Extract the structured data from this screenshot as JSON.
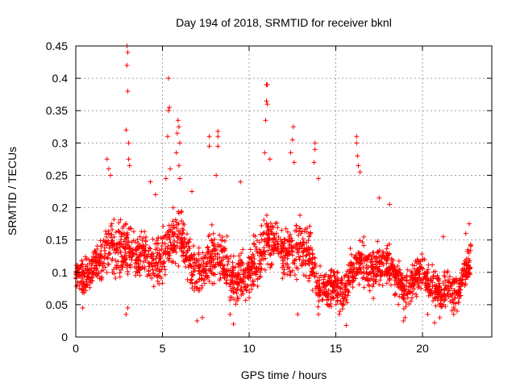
{
  "chart_data": {
    "type": "scatter",
    "title": "Day 194 of 2018, SRMTID for receiver bknl",
    "xlabel": "GPS time / hours",
    "ylabel": "SRMTID / TECUs",
    "xlim": [
      0,
      24
    ],
    "ylim": [
      0,
      0.45
    ],
    "grid": true,
    "marker": "plus",
    "marker_color": "#ff0000",
    "xticks": [
      {
        "value": 0,
        "label": "0"
      },
      {
        "value": 5,
        "label": "5"
      },
      {
        "value": 10,
        "label": "10"
      },
      {
        "value": 15,
        "label": "15"
      },
      {
        "value": 20,
        "label": "20"
      }
    ],
    "yticks": [
      {
        "value": 0,
        "label": "0"
      },
      {
        "value": 0.05,
        "label": "0.05"
      },
      {
        "value": 0.1,
        "label": "0.1"
      },
      {
        "value": 0.15,
        "label": "0.15"
      },
      {
        "value": 0.2,
        "label": "0.2"
      },
      {
        "value": 0.25,
        "label": "0.25"
      },
      {
        "value": 0.3,
        "label": "0.3"
      },
      {
        "value": 0.35,
        "label": "0.35"
      },
      {
        "value": 0.4,
        "label": "0.4"
      },
      {
        "value": 0.45,
        "label": "0.45"
      }
    ],
    "x_extent": [
      0,
      22.8
    ],
    "envelope": {
      "hours": [
        0,
        0.5,
        1,
        1.5,
        2,
        2.5,
        3,
        3.5,
        4,
        4.5,
        5,
        5.5,
        6,
        6.5,
        7,
        7.5,
        8,
        8.5,
        9,
        9.5,
        10,
        10.5,
        11,
        11.5,
        12,
        12.5,
        13,
        13.5,
        14,
        14.5,
        15,
        15.5,
        16,
        16.5,
        17,
        17.5,
        18,
        18.5,
        19,
        19.5,
        20,
        20.5,
        21,
        21.5,
        22,
        22.5,
        22.8
      ],
      "center": [
        0.1,
        0.09,
        0.11,
        0.12,
        0.14,
        0.13,
        0.14,
        0.12,
        0.13,
        0.11,
        0.13,
        0.15,
        0.16,
        0.12,
        0.1,
        0.11,
        0.13,
        0.12,
        0.09,
        0.09,
        0.1,
        0.12,
        0.15,
        0.14,
        0.13,
        0.13,
        0.14,
        0.13,
        0.08,
        0.07,
        0.08,
        0.07,
        0.11,
        0.12,
        0.1,
        0.11,
        0.12,
        0.09,
        0.07,
        0.09,
        0.1,
        0.08,
        0.07,
        0.08,
        0.07,
        0.1,
        0.12
      ],
      "spread": [
        0.03,
        0.04,
        0.04,
        0.05,
        0.06,
        0.06,
        0.06,
        0.05,
        0.05,
        0.05,
        0.06,
        0.06,
        0.06,
        0.05,
        0.05,
        0.05,
        0.06,
        0.06,
        0.05,
        0.05,
        0.05,
        0.06,
        0.06,
        0.06,
        0.06,
        0.06,
        0.06,
        0.06,
        0.04,
        0.04,
        0.04,
        0.04,
        0.05,
        0.05,
        0.05,
        0.05,
        0.05,
        0.04,
        0.04,
        0.04,
        0.04,
        0.04,
        0.04,
        0.04,
        0.04,
        0.04,
        0.04
      ]
    },
    "points_per_hour": 100,
    "peaks": [
      {
        "x": 1.8,
        "y": 0.275
      },
      {
        "x": 1.9,
        "y": 0.26
      },
      {
        "x": 2.0,
        "y": 0.25
      },
      {
        "x": 2.95,
        "y": 0.45
      },
      {
        "x": 3.0,
        "y": 0.44
      },
      {
        "x": 2.95,
        "y": 0.42
      },
      {
        "x": 3.0,
        "y": 0.38
      },
      {
        "x": 2.9,
        "y": 0.32
      },
      {
        "x": 3.05,
        "y": 0.3
      },
      {
        "x": 3.05,
        "y": 0.275
      },
      {
        "x": 3.1,
        "y": 0.265
      },
      {
        "x": 4.3,
        "y": 0.24
      },
      {
        "x": 4.6,
        "y": 0.22
      },
      {
        "x": 5.35,
        "y": 0.4
      },
      {
        "x": 5.4,
        "y": 0.355
      },
      {
        "x": 5.35,
        "y": 0.35
      },
      {
        "x": 5.3,
        "y": 0.31
      },
      {
        "x": 5.45,
        "y": 0.26
      },
      {
        "x": 5.2,
        "y": 0.245
      },
      {
        "x": 5.9,
        "y": 0.335
      },
      {
        "x": 5.95,
        "y": 0.325
      },
      {
        "x": 5.85,
        "y": 0.315
      },
      {
        "x": 6.0,
        "y": 0.3
      },
      {
        "x": 5.8,
        "y": 0.285
      },
      {
        "x": 5.95,
        "y": 0.265
      },
      {
        "x": 6.0,
        "y": 0.245
      },
      {
        "x": 6.7,
        "y": 0.225
      },
      {
        "x": 7.7,
        "y": 0.31
      },
      {
        "x": 7.7,
        "y": 0.295
      },
      {
        "x": 8.2,
        "y": 0.318
      },
      {
        "x": 8.2,
        "y": 0.31
      },
      {
        "x": 8.2,
        "y": 0.295
      },
      {
        "x": 8.1,
        "y": 0.25
      },
      {
        "x": 9.5,
        "y": 0.24
      },
      {
        "x": 11.0,
        "y": 0.39
      },
      {
        "x": 11.05,
        "y": 0.39
      },
      {
        "x": 11.0,
        "y": 0.365
      },
      {
        "x": 11.05,
        "y": 0.36
      },
      {
        "x": 10.95,
        "y": 0.335
      },
      {
        "x": 10.9,
        "y": 0.285
      },
      {
        "x": 11.2,
        "y": 0.275
      },
      {
        "x": 12.55,
        "y": 0.325
      },
      {
        "x": 12.5,
        "y": 0.305
      },
      {
        "x": 12.4,
        "y": 0.285
      },
      {
        "x": 12.6,
        "y": 0.27
      },
      {
        "x": 13.8,
        "y": 0.3
      },
      {
        "x": 13.8,
        "y": 0.29
      },
      {
        "x": 13.75,
        "y": 0.27
      },
      {
        "x": 14.0,
        "y": 0.245
      },
      {
        "x": 16.2,
        "y": 0.31
      },
      {
        "x": 16.2,
        "y": 0.3
      },
      {
        "x": 16.25,
        "y": 0.28
      },
      {
        "x": 16.3,
        "y": 0.265
      },
      {
        "x": 16.4,
        "y": 0.255
      },
      {
        "x": 17.5,
        "y": 0.215
      },
      {
        "x": 18.1,
        "y": 0.205
      },
      {
        "x": 22.7,
        "y": 0.175
      },
      {
        "x": 22.5,
        "y": 0.16
      },
      {
        "x": 21.2,
        "y": 0.155
      }
    ],
    "lows": [
      {
        "x": 0.4,
        "y": 0.045
      },
      {
        "x": 2.9,
        "y": 0.035
      },
      {
        "x": 3.0,
        "y": 0.045
      },
      {
        "x": 7.0,
        "y": 0.025
      },
      {
        "x": 7.3,
        "y": 0.03
      },
      {
        "x": 9.1,
        "y": 0.02
      },
      {
        "x": 8.9,
        "y": 0.035
      },
      {
        "x": 12.8,
        "y": 0.035
      },
      {
        "x": 14.0,
        "y": 0.035
      },
      {
        "x": 15.6,
        "y": 0.018
      },
      {
        "x": 15.2,
        "y": 0.035
      },
      {
        "x": 18.9,
        "y": 0.025
      },
      {
        "x": 19.0,
        "y": 0.03
      },
      {
        "x": 20.3,
        "y": 0.035
      },
      {
        "x": 20.7,
        "y": 0.022
      },
      {
        "x": 21.0,
        "y": 0.03
      },
      {
        "x": 21.8,
        "y": 0.035
      },
      {
        "x": 22.0,
        "y": 0.04
      }
    ]
  }
}
